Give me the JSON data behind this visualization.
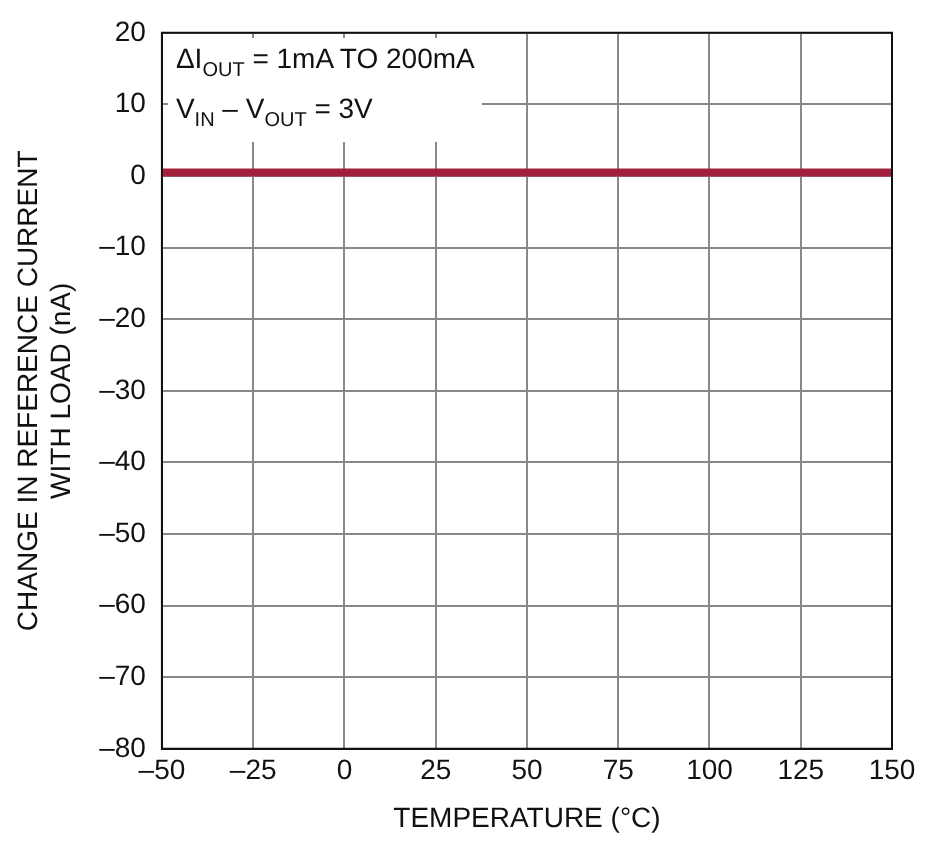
{
  "chart_data": {
    "type": "line",
    "xlabel": "TEMPERATURE (°C)",
    "ylabel": "CHANGE IN REFERENCE CURRENT\nWITH LOAD (nA)",
    "annotations": [
      "ΔI$_{OUT}$ = 1mA TO 200mA",
      "V$_{IN}$ – V$_{OUT}$ = 3V"
    ],
    "x": [
      -50,
      150
    ],
    "series": [
      {
        "color": "#a3203c",
        "values": [
          0.5,
          0.5
        ]
      }
    ],
    "xlim": [
      -50,
      150
    ],
    "xticks": [
      {
        "value": -50,
        "label": "–50"
      },
      {
        "value": -25,
        "label": "–25"
      },
      0,
      25,
      50,
      75,
      100,
      125,
      150
    ],
    "ylim": [
      -80,
      20
    ],
    "yticks": [
      {
        "value": -80,
        "label": "–80"
      },
      {
        "value": -70,
        "label": "–70"
      },
      {
        "value": -60,
        "label": "–60"
      },
      {
        "value": -50,
        "label": "–50"
      },
      {
        "value": -40,
        "label": "–40"
      },
      {
        "value": -30,
        "label": "–30"
      },
      {
        "value": -20,
        "label": "–20"
      },
      {
        "value": -10,
        "label": "–10"
      },
      0,
      10,
      20
    ],
    "grid": true,
    "legend": false,
    "marker": "none",
    "line_style": "solid"
  }
}
